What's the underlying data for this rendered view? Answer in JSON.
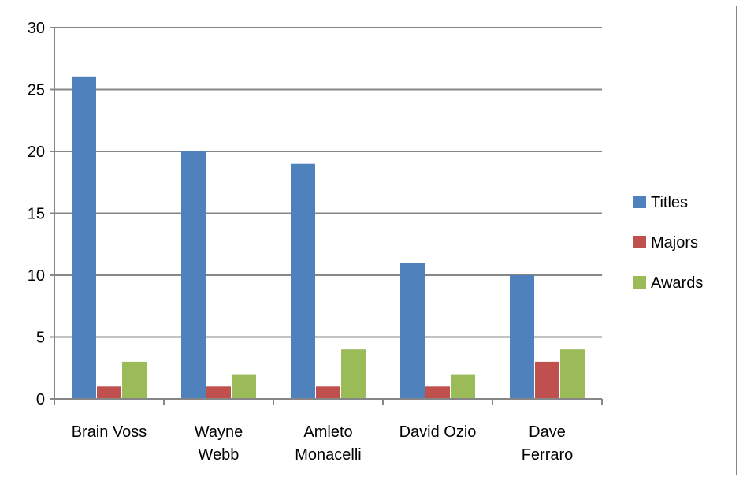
{
  "chart_data": {
    "type": "bar",
    "categories": [
      [
        "Brain Voss"
      ],
      [
        "Wayne",
        "Webb"
      ],
      [
        "Amleto",
        "Monacelli"
      ],
      [
        "David Ozio"
      ],
      [
        "Dave",
        "Ferraro"
      ]
    ],
    "series": [
      {
        "name": "Titles",
        "values": [
          26,
          20,
          19,
          11,
          10
        ],
        "color": "#4F81BD"
      },
      {
        "name": "Majors",
        "values": [
          1,
          1,
          1,
          1,
          3
        ],
        "color": "#C0504D"
      },
      {
        "name": "Awards",
        "values": [
          3,
          2,
          4,
          2,
          4
        ],
        "color": "#9BBB59"
      }
    ],
    "ylim": [
      0,
      30
    ],
    "yticks": [
      0,
      5,
      10,
      15,
      20,
      25,
      30
    ],
    "grid": true,
    "legend": "right"
  }
}
